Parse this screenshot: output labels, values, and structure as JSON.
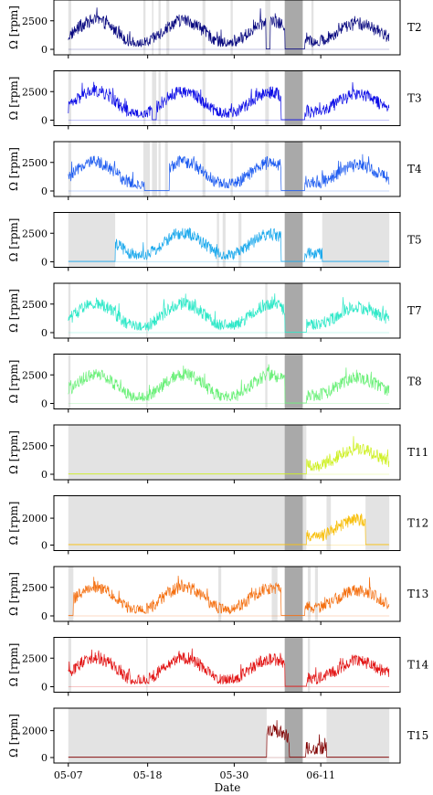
{
  "chart_data": {
    "type": "line",
    "xlabel": "Date",
    "ylabel": "Ω [rpm]",
    "x_ticks": [
      {
        "day": 0,
        "label": "05-07"
      },
      {
        "day": 11,
        "label": "05-18"
      },
      {
        "day": 23,
        "label": "05-30"
      },
      {
        "day": 35,
        "label": "06-11"
      }
    ],
    "x_range_days": [
      -2,
      46
    ],
    "data_span_days": [
      0,
      44.5
    ],
    "dark_band_days": [
      30,
      32.5
    ],
    "panels": [
      {
        "name": "T2",
        "color": "#0a0a80",
        "yticks": [
          0,
          2500
        ],
        "ylim": [
          0,
          4000
        ],
        "gray_regions": [
          [
            0,
            0.4
          ],
          [
            10.4,
            10.7
          ],
          [
            11.6,
            11.8
          ],
          [
            12.5,
            12.8
          ],
          [
            13.6,
            14
          ],
          [
            18.6,
            19
          ],
          [
            22.5,
            22.8
          ],
          [
            27.3,
            28
          ],
          [
            33.7,
            34
          ]
        ],
        "outages": [
          [
            27.4,
            28
          ],
          [
            30,
            32.8
          ]
        ]
      },
      {
        "name": "T3",
        "color": "#0c0ce6",
        "yticks": [
          0,
          2500
        ],
        "ylim": [
          0,
          4000
        ],
        "gray_regions": [
          [
            0,
            0.4
          ],
          [
            10.4,
            10.7
          ],
          [
            11.6,
            12.2
          ],
          [
            12.5,
            12.8
          ],
          [
            13.4,
            13.8
          ],
          [
            18.6,
            19
          ],
          [
            22.5,
            22.8
          ],
          [
            27.3,
            27.8
          ]
        ],
        "outages": [
          [
            11.6,
            12.2
          ],
          [
            29.5,
            32.8
          ]
        ]
      },
      {
        "name": "T4",
        "color": "#1e5cf0",
        "yticks": [
          0,
          2500
        ],
        "ylim": [
          0,
          4000
        ],
        "gray_regions": [
          [
            0,
            0.4
          ],
          [
            10.4,
            11.3
          ],
          [
            11.6,
            12.3
          ],
          [
            12.5,
            12.8
          ],
          [
            13.4,
            13.8
          ],
          [
            18.6,
            19
          ],
          [
            22.5,
            22.8
          ],
          [
            27.3,
            27.8
          ]
        ],
        "outages": [
          [
            10.5,
            14
          ],
          [
            29.5,
            32.8
          ]
        ]
      },
      {
        "name": "T5",
        "color": "#1aa8ec",
        "yticks": [
          0,
          2500
        ],
        "ylim": [
          0,
          4000
        ],
        "gray_regions": [
          [
            0,
            6.5
          ],
          [
            10.8,
            11
          ],
          [
            20.6,
            20.9
          ],
          [
            21.4,
            21.8
          ],
          [
            23.6,
            24
          ],
          [
            35.2,
            44.5
          ]
        ],
        "outages": [
          [
            0,
            6.5
          ],
          [
            29.5,
            32.8
          ],
          [
            35.2,
            44.5
          ]
        ]
      },
      {
        "name": "T7",
        "color": "#2ee8c8",
        "yticks": [
          0,
          2500
        ],
        "ylim": [
          0,
          4000
        ],
        "gray_regions": [
          [
            0,
            0.3
          ],
          [
            10.8,
            11
          ],
          [
            27.3,
            27.6
          ]
        ],
        "outages": [
          [
            30,
            33
          ]
        ]
      },
      {
        "name": "T8",
        "color": "#6cf07a",
        "yticks": [
          0,
          2500
        ],
        "ylim": [
          0,
          4000
        ],
        "gray_regions": [
          [
            0,
            0.3
          ],
          [
            10.8,
            11
          ],
          [
            27.3,
            27.6
          ]
        ],
        "outages": [
          [
            30,
            33
          ]
        ]
      },
      {
        "name": "T11",
        "color": "#cef022",
        "yticks": [
          0,
          2500
        ],
        "ylim": [
          0,
          4000
        ],
        "gray_regions": [
          [
            0,
            33
          ]
        ],
        "outages": [
          [
            0,
            33
          ]
        ]
      },
      {
        "name": "T12",
        "color": "#f8c010",
        "yticks": [
          0,
          2000
        ],
        "ylim": [
          0,
          3400
        ],
        "gray_regions": [
          [
            0,
            33
          ],
          [
            35.8,
            36.4
          ],
          [
            41.2,
            42.2
          ],
          [
            42.2,
            44.5
          ]
        ],
        "outages": [
          [
            0,
            33
          ],
          [
            41.2,
            44.5
          ]
        ]
      },
      {
        "name": "T13",
        "color": "#f46f10",
        "yticks": [
          0,
          2500
        ],
        "ylim": [
          0,
          4000
        ],
        "gray_regions": [
          [
            0,
            0.7
          ],
          [
            20.8,
            21.2
          ],
          [
            28.2,
            29
          ],
          [
            33.2,
            33.6
          ],
          [
            34.2,
            34.6
          ]
        ],
        "outages": [
          [
            0,
            0.7
          ],
          [
            29.5,
            32.8
          ]
        ]
      },
      {
        "name": "T14",
        "color": "#e21515",
        "yticks": [
          0,
          2500
        ],
        "ylim": [
          0,
          4000
        ],
        "gray_regions": [
          [
            0,
            0.4
          ],
          [
            10.8,
            11
          ],
          [
            33.2,
            33.5
          ]
        ],
        "outages": [
          [
            30,
            33
          ]
        ]
      },
      {
        "name": "T15",
        "color": "#800000",
        "yticks": [
          0,
          2000
        ],
        "ylim": [
          0,
          3400
        ],
        "gray_regions": [
          [
            0,
            27.5
          ],
          [
            35.8,
            44.5
          ]
        ],
        "outages": [
          [
            0,
            27.5
          ],
          [
            30.6,
            32.9
          ],
          [
            35.8,
            44.5
          ]
        ]
      }
    ]
  }
}
